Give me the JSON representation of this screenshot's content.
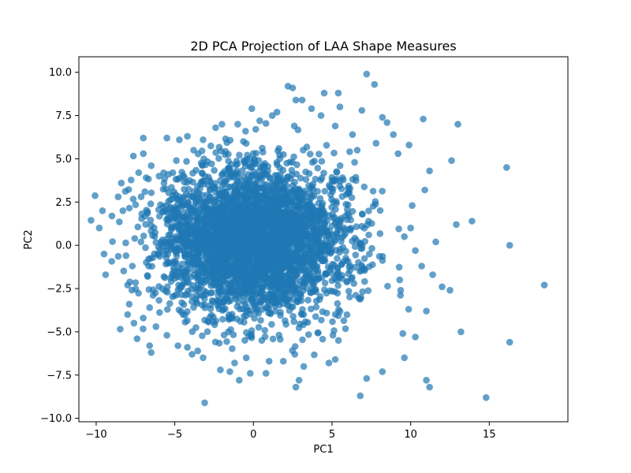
{
  "chart_data": {
    "type": "scatter",
    "title": "2D PCA Projection of LAA Shape Measures",
    "xlabel": "PC1",
    "ylabel": "PC2",
    "xlim": [
      -11.1,
      20.0
    ],
    "ylim": [
      -10.2,
      10.9
    ],
    "xticks": [
      -10,
      -5,
      0,
      5,
      10,
      15
    ],
    "yticks": [
      -10.0,
      -7.5,
      -5.0,
      -2.5,
      0.0,
      2.5,
      5.0,
      7.5,
      10.0
    ],
    "xtick_labels": [
      "−10",
      "−5",
      "0",
      "5",
      "10",
      "15"
    ],
    "ytick_labels": [
      "−10.0",
      "−7.5",
      "−5.0",
      "−2.5",
      "0.0",
      "2.5",
      "5.0",
      "7.5",
      "10.0"
    ],
    "grid": false,
    "legend": "none",
    "point_color": "#1f77b4",
    "point_alpha": 0.7,
    "series": [
      {
        "points": [
          [
            -9.6,
            2.0
          ],
          [
            -9.8,
            1.0
          ],
          [
            -9.5,
            -0.5
          ],
          [
            -9.4,
            -1.7
          ],
          [
            -9.0,
            1.7
          ],
          [
            -8.6,
            2.8
          ],
          [
            -8.4,
            3.6
          ],
          [
            -8.3,
            2.0
          ],
          [
            -8.1,
            -0.6
          ],
          [
            -8.0,
            -2.3
          ],
          [
            -7.9,
            -3.4
          ],
          [
            -8.0,
            -4.0
          ],
          [
            -7.7,
            -1.2
          ],
          [
            -7.6,
            -4.5
          ],
          [
            -7.3,
            4.2
          ],
          [
            -7.4,
            -5.4
          ],
          [
            -7.0,
            6.2
          ],
          [
            -7.0,
            5.3
          ],
          [
            -6.9,
            3.1
          ],
          [
            -6.6,
            -5.8
          ],
          [
            -6.5,
            4.6
          ],
          [
            -6.6,
            -3.6
          ],
          [
            -6.2,
            -4.7
          ],
          [
            -6.5,
            -6.2
          ],
          [
            -6.0,
            4.0
          ],
          [
            -5.5,
            6.2
          ],
          [
            -5.4,
            4.1
          ],
          [
            -5.5,
            -5.2
          ],
          [
            -4.9,
            4.9
          ],
          [
            -4.8,
            -5.8
          ],
          [
            -4.2,
            6.3
          ],
          [
            -4.2,
            -5.9
          ],
          [
            -3.9,
            -6.3
          ],
          [
            -3.8,
            5.5
          ],
          [
            -3.2,
            6.1
          ],
          [
            -3.2,
            -6.5
          ],
          [
            -3.1,
            -9.1
          ],
          [
            -2.4,
            6.8
          ],
          [
            -2.1,
            -7.2
          ],
          [
            -2.0,
            7.0
          ],
          [
            -1.5,
            -7.3
          ],
          [
            -1.2,
            -6.8
          ],
          [
            -1.0,
            7.0
          ],
          [
            -0.9,
            -7.8
          ],
          [
            -0.5,
            6.6
          ],
          [
            -0.1,
            7.9
          ],
          [
            -0.2,
            -7.4
          ],
          [
            0.4,
            7.2
          ],
          [
            0.8,
            -7.4
          ],
          [
            1.0,
            -6.7
          ],
          [
            1.2,
            7.5
          ],
          [
            1.5,
            7.7
          ],
          [
            1.9,
            -6.7
          ],
          [
            2.2,
            9.2
          ],
          [
            2.5,
            9.1
          ],
          [
            2.7,
            8.4
          ],
          [
            2.6,
            6.9
          ],
          [
            2.7,
            -8.2
          ],
          [
            2.9,
            -7.8
          ],
          [
            3.1,
            8.4
          ],
          [
            3.2,
            -7.0
          ],
          [
            3.7,
            7.9
          ],
          [
            4.3,
            7.5
          ],
          [
            4.5,
            8.8
          ],
          [
            4.8,
            -6.8
          ],
          [
            5.2,
            -6.6
          ],
          [
            5.4,
            8.8
          ],
          [
            5.5,
            8.0
          ],
          [
            5.2,
            6.9
          ],
          [
            6.3,
            6.4
          ],
          [
            6.6,
            5.5
          ],
          [
            6.8,
            -8.7
          ],
          [
            6.9,
            7.8
          ],
          [
            7.2,
            9.9
          ],
          [
            7.2,
            -7.7
          ],
          [
            7.7,
            9.3
          ],
          [
            7.8,
            5.9
          ],
          [
            8.2,
            7.4
          ],
          [
            8.2,
            -7.3
          ],
          [
            8.5,
            7.1
          ],
          [
            8.9,
            6.4
          ],
          [
            9.2,
            5.3
          ],
          [
            9.5,
            -5.1
          ],
          [
            9.6,
            -6.5
          ],
          [
            9.9,
            5.8
          ],
          [
            10.1,
            2.3
          ],
          [
            10.3,
            -5.3
          ],
          [
            10.8,
            7.3
          ],
          [
            10.9,
            3.2
          ],
          [
            11.0,
            -7.8
          ],
          [
            11.2,
            -8.2
          ],
          [
            11.0,
            -3.8
          ],
          [
            11.2,
            4.3
          ],
          [
            11.6,
            0.2
          ],
          [
            12.0,
            -2.4
          ],
          [
            12.5,
            -2.6
          ],
          [
            12.6,
            4.9
          ],
          [
            13.0,
            7.0
          ],
          [
            12.9,
            1.2
          ],
          [
            13.2,
            -5.0
          ],
          [
            13.9,
            1.4
          ],
          [
            14.8,
            -8.8
          ],
          [
            16.1,
            4.5
          ],
          [
            16.3,
            0.0
          ],
          [
            16.3,
            -5.6
          ],
          [
            18.5,
            -2.3
          ],
          [
            10.3,
            -0.3
          ],
          [
            10.7,
            -1.2
          ],
          [
            10.0,
            1.0
          ],
          [
            11.4,
            -1.7
          ],
          [
            9.6,
            0.5
          ],
          [
            9.3,
            -2.0
          ]
        ]
      }
    ],
    "core_cloud": {
      "center": [
        0.0,
        0.3
      ],
      "sd": [
        3.0,
        2.1
      ],
      "count": 3600,
      "seed": 7
    }
  }
}
